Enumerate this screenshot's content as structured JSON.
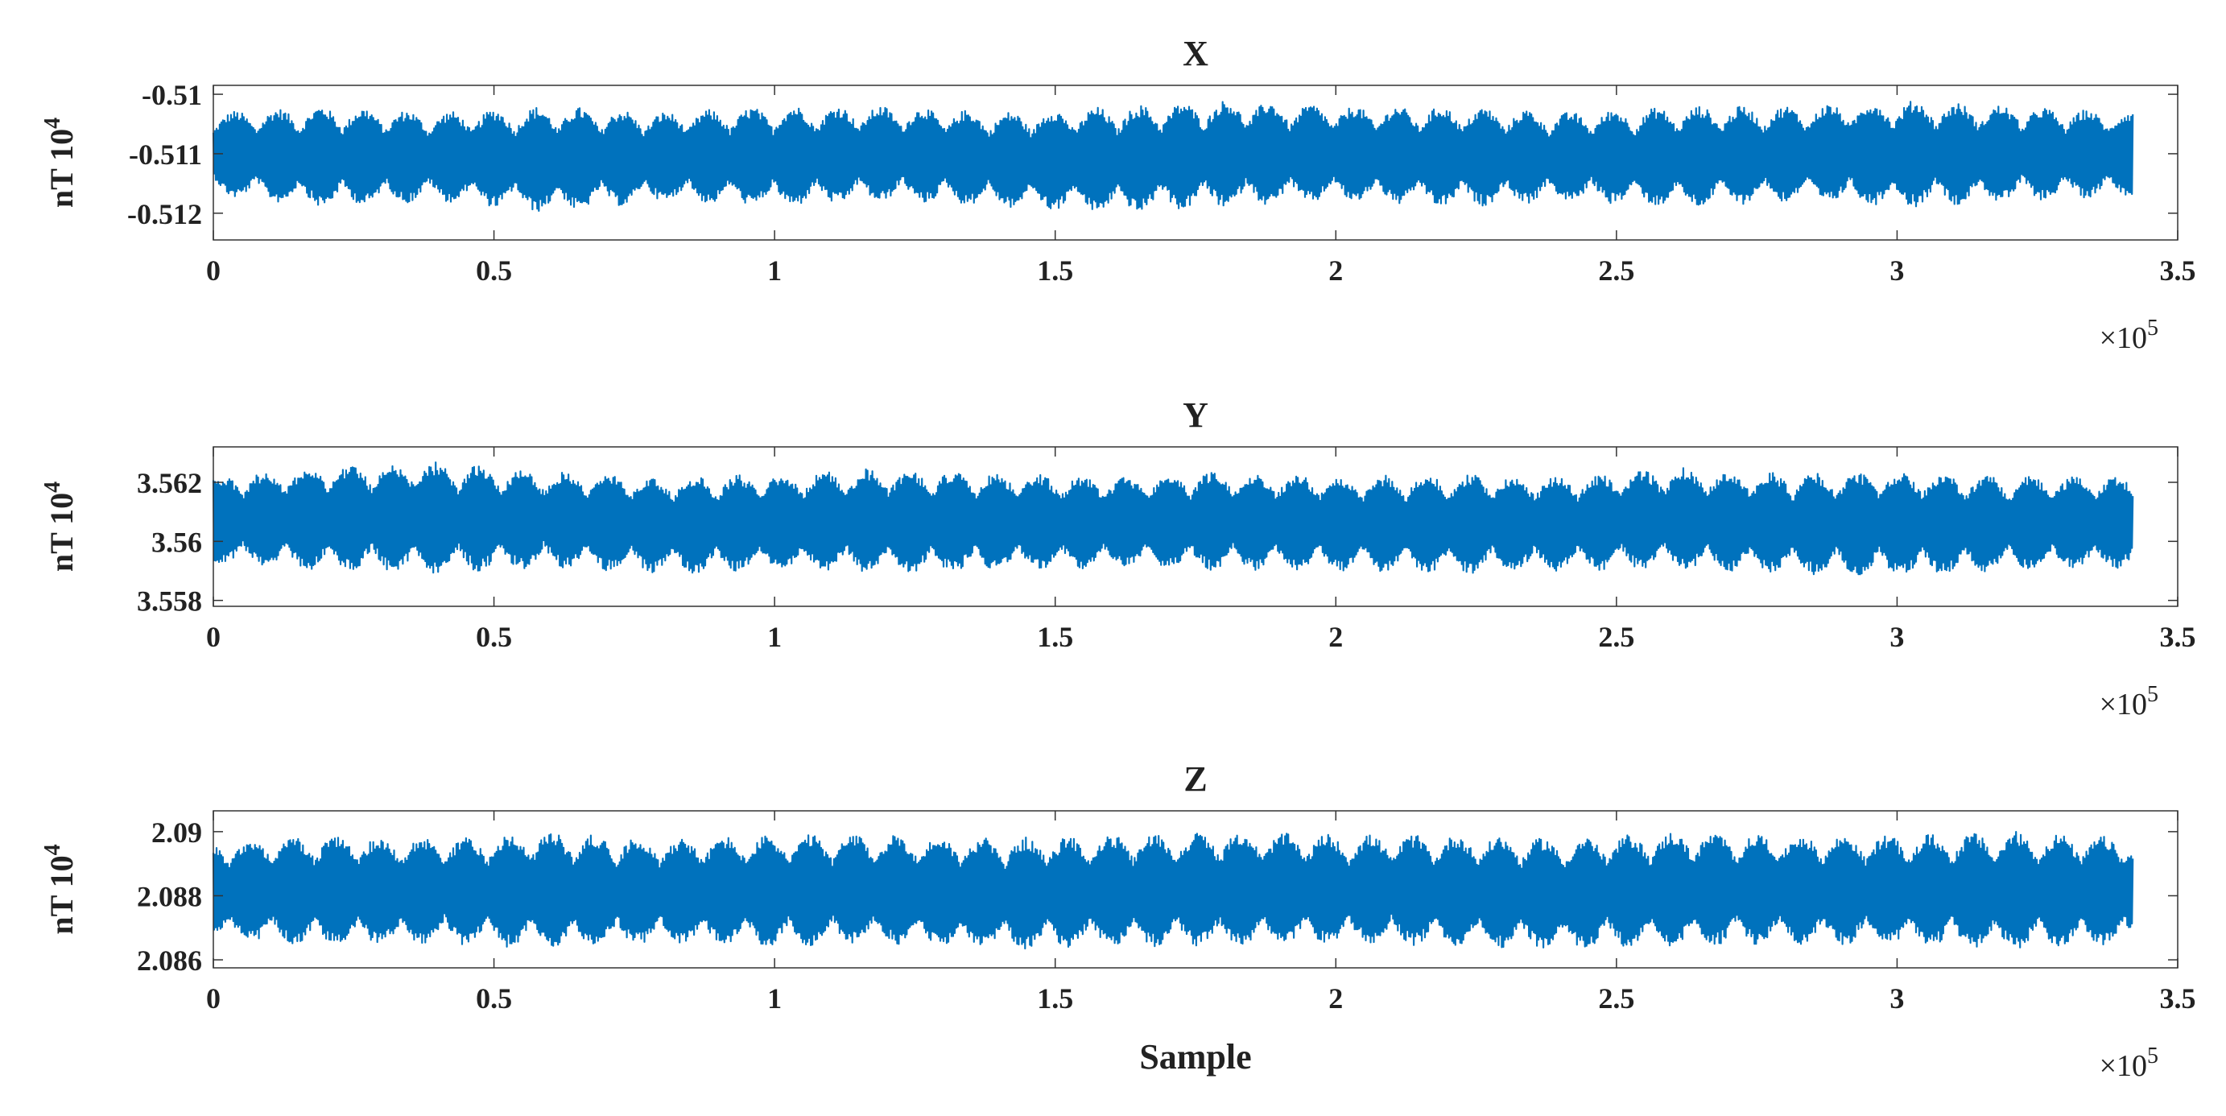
{
  "chart_data": [
    {
      "type": "line",
      "title": "X",
      "ylabel": "nT",
      "y_multiplier": "10",
      "y_multiplier_exp": "4",
      "x_multiplier": "×10",
      "x_multiplier_exp": "5",
      "xlabel": "",
      "xlim": [
        0,
        3.5
      ],
      "ylim": [
        -0.51245,
        -0.50985
      ],
      "x_ticks": [
        0,
        0.5,
        1,
        1.5,
        2,
        2.5,
        3,
        3.5
      ],
      "x_tick_labels": [
        "0",
        "0.5",
        "1",
        "1.5",
        "2",
        "2.5",
        "3",
        "3.5"
      ],
      "y_ticks": [
        -0.51,
        -0.511,
        -0.512
      ],
      "y_tick_labels": [
        "-0.51",
        "-0.511",
        "-0.512"
      ],
      "grid": false,
      "series_color": "#0072BD",
      "series": [
        {
          "x_range": [
            0,
            3.42
          ],
          "points": 340000,
          "mean": -0.511,
          "envelope_upper": [
            -0.5103,
            -0.5102,
            -0.5103,
            -0.5102,
            -0.5103,
            -0.5102,
            -0.5102,
            -0.5103,
            -0.5102,
            -0.5101,
            -0.5102,
            -0.5102,
            -0.5103,
            -0.5102,
            -0.5102,
            -0.5101,
            -0.5102,
            -0.5103
          ],
          "envelope_lower": [
            -0.5117,
            -0.5119,
            -0.5118,
            -0.512,
            -0.5118,
            -0.5119,
            -0.5118,
            -0.5119,
            -0.512,
            -0.5119,
            -0.5118,
            -0.5119,
            -0.5118,
            -0.5119,
            -0.5118,
            -0.5119,
            -0.5118,
            -0.5117
          ]
        }
      ]
    },
    {
      "type": "line",
      "title": "Y",
      "ylabel": "nT",
      "y_multiplier": "10",
      "y_multiplier_exp": "4",
      "x_multiplier": "×10",
      "x_multiplier_exp": "5",
      "xlabel": "",
      "xlim": [
        0,
        3.5
      ],
      "ylim": [
        3.5578,
        3.5632
      ],
      "x_ticks": [
        0,
        0.5,
        1,
        1.5,
        2,
        2.5,
        3,
        3.5
      ],
      "x_tick_labels": [
        "0",
        "0.5",
        "1",
        "1.5",
        "2",
        "2.5",
        "3",
        "3.5"
      ],
      "y_ticks": [
        3.562,
        3.56,
        3.558
      ],
      "y_tick_labels": [
        "3.562",
        "3.56",
        "3.558"
      ],
      "grid": false,
      "series_color": "#0072BD",
      "series": [
        {
          "x_range": [
            0,
            3.42
          ],
          "points": 340000,
          "mean": 3.5606,
          "envelope_upper": [
            3.5622,
            3.5626,
            3.5627,
            3.5624,
            3.5622,
            3.5623,
            3.5625,
            3.5623,
            3.5622,
            3.5624,
            3.5622,
            3.5623,
            3.5622,
            3.5625,
            3.5623,
            3.5624,
            3.5622,
            3.5622
          ],
          "envelope_lower": [
            3.5592,
            3.559,
            3.5589,
            3.5591,
            3.5589,
            3.559,
            3.5589,
            3.559,
            3.5591,
            3.559,
            3.559,
            3.5589,
            3.559,
            3.559,
            3.5589,
            3.5588,
            3.559,
            3.5591
          ]
        }
      ]
    },
    {
      "type": "line",
      "title": "Z",
      "ylabel": "nT",
      "y_multiplier": "10",
      "y_multiplier_exp": "4",
      "x_multiplier": "×10",
      "x_multiplier_exp": "5",
      "xlabel": "Sample",
      "xlim": [
        0,
        3.5
      ],
      "ylim": [
        2.08575,
        2.09065
      ],
      "x_ticks": [
        0,
        0.5,
        1,
        1.5,
        2,
        2.5,
        3,
        3.5
      ],
      "x_tick_labels": [
        "0",
        "0.5",
        "1",
        "1.5",
        "2",
        "2.5",
        "3",
        "3.5"
      ],
      "y_ticks": [
        2.09,
        2.088,
        2.086
      ],
      "y_tick_labels": [
        "2.09",
        "2.088",
        "2.086"
      ],
      "grid": false,
      "series_color": "#0072BD",
      "series": [
        {
          "x_range": [
            0,
            3.42
          ],
          "points": 340000,
          "mean": 2.0881,
          "envelope_upper": [
            2.0897,
            2.0899,
            2.0898,
            2.09,
            2.0898,
            2.0899,
            2.0899,
            2.0898,
            2.0899,
            2.09,
            2.0899,
            2.0899,
            2.0898,
            2.09,
            2.0899,
            2.0899,
            2.09,
            2.0898
          ],
          "envelope_lower": [
            2.0866,
            2.0864,
            2.0865,
            2.0863,
            2.0865,
            2.0864,
            2.0865,
            2.0863,
            2.0864,
            2.0864,
            2.0865,
            2.0864,
            2.0863,
            2.0864,
            2.0865,
            2.0864,
            2.0863,
            2.0865
          ]
        }
      ]
    }
  ]
}
